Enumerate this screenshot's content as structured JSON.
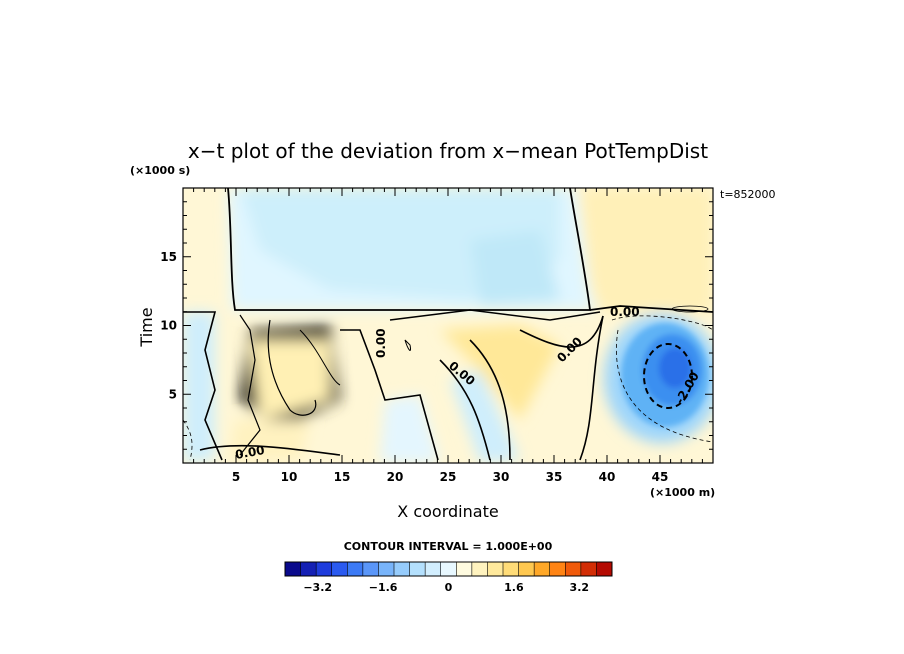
{
  "chart_data": {
    "type": "heatmap",
    "title": "x−t plot of the deviation from x−mean PotTempDist",
    "xlabel": "X coordinate",
    "ylabel": "Time",
    "x_unit_label": "(×1000 m)",
    "y_unit_label": "(×1000 s)",
    "timestamp": "t=852000",
    "xlim": [
      0,
      50
    ],
    "ylim": [
      0,
      20
    ],
    "x_ticks": [
      5,
      10,
      15,
      20,
      25,
      30,
      35,
      40,
      45
    ],
    "y_ticks": [
      5,
      10,
      15
    ],
    "contour_interval_text": "CONTOUR INTERVAL = 1.000E+00",
    "contour_labels": [
      "0.00",
      "0.00",
      "0.00",
      "0.00",
      "0.00",
      "-2.00"
    ],
    "colorbar": {
      "min": -4,
      "max": 4,
      "step": 0.4,
      "tick_values": [
        -3.2,
        -1.6,
        0,
        1.6,
        3.2
      ],
      "tick_labels": [
        "−3.2",
        "−1.6",
        "0",
        "1.6",
        "3.2"
      ],
      "colors": [
        "#0a0a8c",
        "#1420b4",
        "#1e3cdc",
        "#2a5af0",
        "#3c7af5",
        "#5a96f8",
        "#78b4fa",
        "#96ccfc",
        "#b4e0fd",
        "#d2eefe",
        "#e8f8ff",
        "#fffbe0",
        "#fff3bf",
        "#ffe99c",
        "#ffdc78",
        "#ffc850",
        "#ffa828",
        "#ff8414",
        "#f05a0a",
        "#d22d05",
        "#b40a02"
      ]
    },
    "features": [
      {
        "name": "cold anomaly",
        "x": 46,
        "y": 7,
        "min_value": -3.0
      },
      {
        "name": "warm band",
        "x": 30,
        "y": 7,
        "max_value": 0.9
      },
      {
        "name": "warm upper-right region",
        "x": 45,
        "y": 16,
        "max_value": 0.6
      },
      {
        "name": "cool upper-middle region",
        "x": 26,
        "y": 16,
        "min_value": -0.4
      }
    ]
  }
}
